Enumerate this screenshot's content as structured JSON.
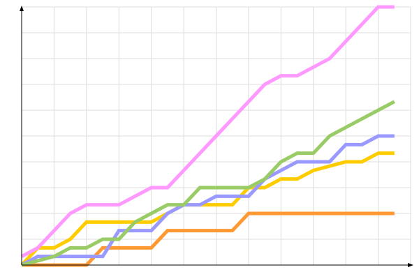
{
  "chart_data": {
    "type": "line",
    "title": "",
    "xlabel": "",
    "ylabel": "",
    "xlim": [
      0,
      24
    ],
    "ylim": [
      0,
      30
    ],
    "grid": true,
    "x_grid_step": 2,
    "y_grid_step": 3,
    "x": [
      0,
      1,
      2,
      3,
      4,
      5,
      6,
      7,
      8,
      9,
      10,
      11,
      12,
      13,
      14,
      15,
      16,
      17,
      18,
      19,
      20,
      21,
      22,
      23
    ],
    "series": [
      {
        "color": "#ff99ff",
        "values": [
          1,
          2,
          4,
          6,
          7,
          7,
          7,
          8,
          9,
          9,
          11,
          13,
          15,
          17,
          19,
          21,
          22,
          22,
          23,
          24,
          26,
          28,
          30,
          30
        ]
      },
      {
        "color": "#99cc66",
        "values": [
          0,
          0.5,
          1,
          2,
          2,
          3,
          3,
          5,
          6,
          7,
          7,
          9,
          9,
          9,
          9,
          10,
          12,
          13,
          13,
          15,
          16,
          17,
          18,
          19
        ]
      },
      {
        "color": "#9999ff",
        "values": [
          0,
          1,
          1,
          1,
          1,
          1,
          4,
          4,
          4,
          6,
          7,
          7,
          8,
          8,
          8,
          10,
          11,
          12,
          12,
          12,
          14,
          14,
          15,
          15
        ]
      },
      {
        "color": "#ffcc00",
        "values": [
          0,
          2,
          2,
          3,
          5,
          5,
          5,
          5,
          5,
          6,
          7,
          7,
          7,
          7,
          9,
          9,
          10,
          10,
          11,
          11.5,
          12,
          12,
          13,
          13
        ]
      },
      {
        "color": "#ff9933",
        "values": [
          0,
          0,
          0,
          0,
          0,
          2,
          2,
          2,
          2,
          4,
          4,
          4,
          4,
          4,
          6,
          6,
          6,
          6,
          6,
          6,
          6,
          6,
          6,
          6
        ]
      }
    ]
  }
}
